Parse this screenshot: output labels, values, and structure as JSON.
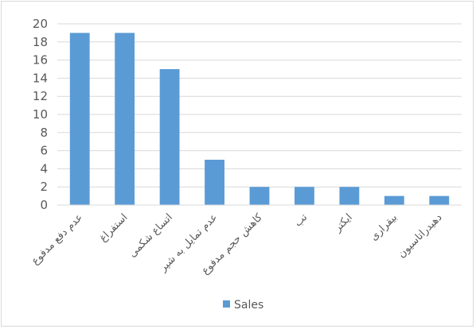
{
  "chart_data": {
    "type": "bar",
    "categories": [
      "عدم دفع مدفوع",
      "استفراغ",
      "اتساع شکمی",
      "عدم تمایل به شیر",
      "کاهش حجم مدفوع",
      "تب",
      "ایکتر",
      "بیقراری",
      "دهیدراتاسیون"
    ],
    "series": [
      {
        "name": "Sales",
        "values": [
          19,
          19,
          15,
          5,
          2,
          2,
          2,
          1,
          1
        ],
        "color": "#5b9bd5"
      }
    ],
    "ylim": [
      0,
      20
    ],
    "y_ticks": [
      0,
      2,
      4,
      6,
      8,
      10,
      12,
      14,
      16,
      18,
      20
    ],
    "grid": true,
    "legend_position": "bottom",
    "colors": {
      "bar": "#5b9bd5",
      "grid": "#d9d9d9",
      "text": "#595959"
    }
  }
}
